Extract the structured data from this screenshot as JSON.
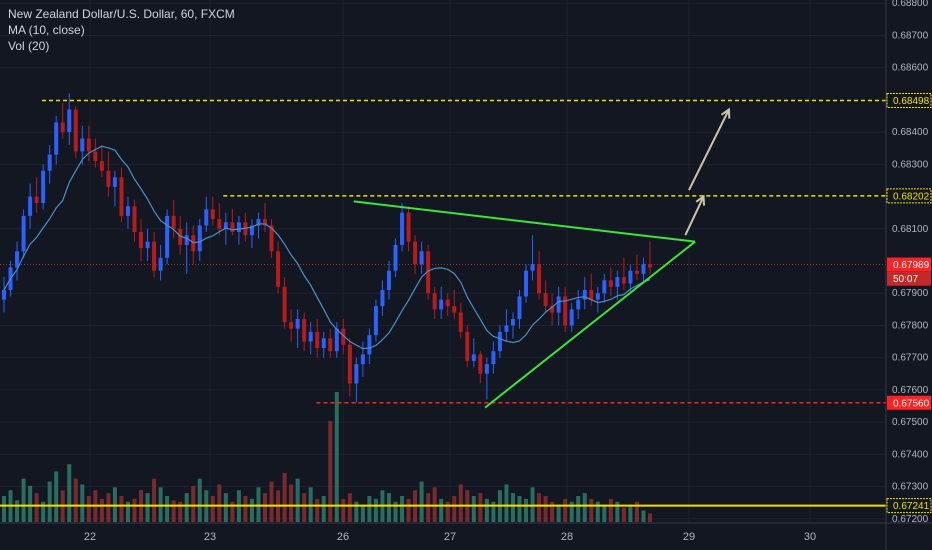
{
  "legend": {
    "symbol_line": "New Zealand Dollar/U.S. Dollar, 60, FXCM",
    "ma_line": "MA (10, close)",
    "vol_line": "Vol (20)"
  },
  "colors": {
    "background": "#131722",
    "up_candle": "#2962ff",
    "down_candle": "#b71c1c",
    "ma_line": "#4a90c8",
    "level_yellow": "#f0e000",
    "level_red": "#ff2222",
    "trend_green": "#39e639",
    "arrow": "#c8c8a8",
    "vol_up": "#2e7d6b",
    "vol_down": "#8b2e2e"
  },
  "chart_data": {
    "type": "candlestick",
    "title": "New Zealand Dollar/U.S. Dollar, 60, FXCM",
    "y_axis": {
      "ticks": [
        "0.68800",
        "0.68700",
        "0.68600",
        "0.68400",
        "0.68300",
        "0.68100",
        "0.67900",
        "0.67800",
        "0.67700",
        "0.67600",
        "0.67500",
        "0.67400",
        "0.67300",
        "0.67200"
      ],
      "range": [
        0.6719,
        0.6881
      ]
    },
    "x_axis": {
      "ticks": [
        "22",
        "23",
        "26",
        "27",
        "28",
        "29",
        "30"
      ]
    },
    "price_tags": [
      {
        "label": "0.68498",
        "value": 0.68498,
        "style": "yellow"
      },
      {
        "label": "0.68202",
        "value": 0.68202,
        "style": "yellow"
      },
      {
        "label": "0.67989",
        "value": 0.67989,
        "style": "red"
      },
      {
        "label": "50:07",
        "value": 0.67945,
        "style": "red-timer"
      },
      {
        "label": "0.67560",
        "value": 0.6756,
        "style": "red"
      },
      {
        "label": "0.67241",
        "value": 0.67241,
        "style": "yellow"
      }
    ],
    "horizontal_levels": [
      {
        "value": 0.68498,
        "from": "21.6",
        "color": "yellow",
        "dash": true
      },
      {
        "value": 0.68202,
        "from": "23.3",
        "color": "yellow",
        "dash": true
      },
      {
        "value": 0.6756,
        "from": "25.4",
        "color": "red",
        "dash": true
      },
      {
        "value": 0.67241,
        "from": "start",
        "color": "yellow",
        "dash": false
      },
      {
        "value": 0.67989,
        "from": "start",
        "color": "red-dotted",
        "dash": true
      }
    ],
    "triangle": {
      "upper": [
        [
          26.1,
          0.68185
        ],
        [
          29.05,
          0.6806
        ]
      ],
      "lower": [
        [
          27.3,
          0.67545
        ],
        [
          29.05,
          0.6806
        ]
      ]
    },
    "arrows": [
      {
        "from": [
          28.97,
          0.6808
        ],
        "to": [
          29.12,
          0.682
        ]
      },
      {
        "from": [
          29.0,
          0.6822
        ],
        "to": [
          29.33,
          0.6847
        ]
      }
    ],
    "candles": [
      [
        0.6788,
        0.6795,
        0.6784,
        0.6791
      ],
      [
        0.6791,
        0.68,
        0.6789,
        0.6798
      ],
      [
        0.6798,
        0.6806,
        0.6794,
        0.6803
      ],
      [
        0.6803,
        0.6816,
        0.6801,
        0.6814
      ],
      [
        0.6814,
        0.6824,
        0.681,
        0.682
      ],
      [
        0.682,
        0.6826,
        0.6815,
        0.6818
      ],
      [
        0.6818,
        0.683,
        0.6816,
        0.6828
      ],
      [
        0.6828,
        0.6836,
        0.6824,
        0.6833
      ],
      [
        0.6833,
        0.6845,
        0.683,
        0.6843
      ],
      [
        0.6843,
        0.6849,
        0.6838,
        0.684
      ],
      [
        0.684,
        0.6852,
        0.6836,
        0.6847
      ],
      [
        0.6847,
        0.6848,
        0.6832,
        0.6834
      ],
      [
        0.6834,
        0.6842,
        0.683,
        0.6838
      ],
      [
        0.6838,
        0.6842,
        0.6831,
        0.6834
      ],
      [
        0.6834,
        0.6838,
        0.6829,
        0.6831
      ],
      [
        0.6831,
        0.6836,
        0.6826,
        0.6828
      ],
      [
        0.6828,
        0.6834,
        0.682,
        0.6823
      ],
      [
        0.6823,
        0.6828,
        0.6817,
        0.6826
      ],
      [
        0.6826,
        0.6829,
        0.6812,
        0.6814
      ],
      [
        0.6814,
        0.682,
        0.681,
        0.6817
      ],
      [
        0.6817,
        0.6819,
        0.6806,
        0.6809
      ],
      [
        0.6809,
        0.6813,
        0.68,
        0.6804
      ],
      [
        0.6804,
        0.681,
        0.68,
        0.6806
      ],
      [
        0.6806,
        0.6809,
        0.6795,
        0.6797
      ],
      [
        0.6797,
        0.6805,
        0.6794,
        0.6801
      ],
      [
        0.6801,
        0.6816,
        0.6799,
        0.6814
      ],
      [
        0.6814,
        0.6819,
        0.6807,
        0.681
      ],
      [
        0.681,
        0.6814,
        0.6802,
        0.6805
      ],
      [
        0.6805,
        0.6812,
        0.6796,
        0.6808
      ],
      [
        0.6808,
        0.6811,
        0.6799,
        0.6803
      ],
      [
        0.6803,
        0.6813,
        0.68,
        0.6811
      ],
      [
        0.6811,
        0.682,
        0.6809,
        0.6816
      ],
      [
        0.6816,
        0.682,
        0.6811,
        0.6813
      ],
      [
        0.6813,
        0.6818,
        0.6808,
        0.681
      ],
      [
        0.681,
        0.6815,
        0.6805,
        0.6812
      ],
      [
        0.6812,
        0.6816,
        0.6808,
        0.6809
      ],
      [
        0.6809,
        0.6814,
        0.6805,
        0.6812
      ],
      [
        0.6812,
        0.6815,
        0.6806,
        0.6808
      ],
      [
        0.6808,
        0.6813,
        0.6804,
        0.6811
      ],
      [
        0.6811,
        0.6815,
        0.6807,
        0.6813
      ],
      [
        0.6813,
        0.6818,
        0.6809,
        0.6811
      ],
      [
        0.6811,
        0.6813,
        0.6801,
        0.6803
      ],
      [
        0.6803,
        0.6806,
        0.679,
        0.6792
      ],
      [
        0.6792,
        0.6795,
        0.6779,
        0.6781
      ],
      [
        0.6781,
        0.6785,
        0.6775,
        0.6779
      ],
      [
        0.6779,
        0.6785,
        0.6773,
        0.6782
      ],
      [
        0.6782,
        0.6784,
        0.6772,
        0.6775
      ],
      [
        0.6775,
        0.6781,
        0.6771,
        0.6778
      ],
      [
        0.6778,
        0.6782,
        0.677,
        0.6773
      ],
      [
        0.6773,
        0.6778,
        0.677,
        0.6776
      ],
      [
        0.6776,
        0.6779,
        0.677,
        0.6772
      ],
      [
        0.6772,
        0.6781,
        0.677,
        0.6779
      ],
      [
        0.6779,
        0.6782,
        0.6771,
        0.6774
      ],
      [
        0.6774,
        0.6776,
        0.6758,
        0.6762
      ],
      [
        0.6762,
        0.677,
        0.6756,
        0.6768
      ],
      [
        0.6768,
        0.6775,
        0.6764,
        0.6771
      ],
      [
        0.6771,
        0.6779,
        0.6768,
        0.6777
      ],
      [
        0.6777,
        0.6788,
        0.6775,
        0.6786
      ],
      [
        0.6786,
        0.6794,
        0.6783,
        0.6791
      ],
      [
        0.6791,
        0.68,
        0.6788,
        0.6797
      ],
      [
        0.6797,
        0.6807,
        0.6795,
        0.6805
      ],
      [
        0.6805,
        0.6818,
        0.6803,
        0.6815
      ],
      [
        0.6815,
        0.6817,
        0.6803,
        0.6806
      ],
      [
        0.6806,
        0.6808,
        0.6796,
        0.6799
      ],
      [
        0.6799,
        0.6806,
        0.6796,
        0.6803
      ],
      [
        0.6803,
        0.6805,
        0.6788,
        0.679
      ],
      [
        0.679,
        0.6792,
        0.6782,
        0.6785
      ],
      [
        0.6785,
        0.6792,
        0.6782,
        0.6788
      ],
      [
        0.6788,
        0.679,
        0.6783,
        0.6786
      ],
      [
        0.6786,
        0.6791,
        0.6782,
        0.6784
      ],
      [
        0.6784,
        0.6787,
        0.6776,
        0.6778
      ],
      [
        0.6778,
        0.678,
        0.6767,
        0.6769
      ],
      [
        0.6769,
        0.6776,
        0.6767,
        0.6771
      ],
      [
        0.6771,
        0.6772,
        0.6762,
        0.6765
      ],
      [
        0.6765,
        0.677,
        0.6757,
        0.6768
      ],
      [
        0.6768,
        0.6775,
        0.6765,
        0.6772
      ],
      [
        0.6772,
        0.678,
        0.677,
        0.6778
      ],
      [
        0.6778,
        0.6785,
        0.6775,
        0.678
      ],
      [
        0.678,
        0.6784,
        0.6776,
        0.6782
      ],
      [
        0.6782,
        0.6791,
        0.6779,
        0.6789
      ],
      [
        0.6789,
        0.6799,
        0.6787,
        0.6797
      ],
      [
        0.6797,
        0.6808,
        0.6794,
        0.6799
      ],
      [
        0.6799,
        0.6803,
        0.6788,
        0.679
      ],
      [
        0.679,
        0.6794,
        0.6784,
        0.6786
      ],
      [
        0.6786,
        0.679,
        0.678,
        0.6784
      ],
      [
        0.6784,
        0.6792,
        0.678,
        0.6789
      ],
      [
        0.6789,
        0.6792,
        0.6778,
        0.678
      ],
      [
        0.678,
        0.6787,
        0.6778,
        0.6785
      ],
      [
        0.6785,
        0.6791,
        0.6782,
        0.6788
      ],
      [
        0.6788,
        0.6795,
        0.6785,
        0.6791
      ],
      [
        0.6791,
        0.6796,
        0.6786,
        0.6788
      ],
      [
        0.6788,
        0.6792,
        0.6784,
        0.679
      ],
      [
        0.679,
        0.6796,
        0.6787,
        0.6794
      ],
      [
        0.6794,
        0.6798,
        0.6789,
        0.6792
      ],
      [
        0.6792,
        0.6797,
        0.6788,
        0.6795
      ],
      [
        0.6795,
        0.6801,
        0.6791,
        0.6793
      ],
      [
        0.6793,
        0.6799,
        0.679,
        0.6797
      ],
      [
        0.6797,
        0.6802,
        0.6794,
        0.6796
      ],
      [
        0.6796,
        0.6801,
        0.6793,
        0.6799
      ],
      [
        0.6799,
        0.6806,
        0.6796,
        0.6798
      ]
    ],
    "ma_period": 10,
    "volume": [
      18,
      22,
      15,
      30,
      25,
      20,
      14,
      28,
      35,
      22,
      40,
      30,
      26,
      18,
      22,
      16,
      20,
      24,
      18,
      14,
      16,
      22,
      20,
      30,
      24,
      18,
      15,
      14,
      20,
      25,
      30,
      22,
      18,
      26,
      20,
      14,
      22,
      18,
      16,
      24,
      20,
      28,
      22,
      34,
      26,
      30,
      20,
      24,
      16,
      18,
      70,
      90,
      16,
      20,
      14,
      12,
      18,
      16,
      22,
      20,
      14,
      18,
      16,
      22,
      28,
      20,
      24,
      16,
      14,
      18,
      26,
      22,
      18,
      20,
      16,
      14,
      22,
      26,
      20,
      18,
      16,
      24,
      20,
      18,
      14,
      12,
      16,
      14,
      18,
      20,
      16,
      14,
      12,
      16,
      14,
      10,
      12,
      14,
      8,
      6
    ]
  }
}
